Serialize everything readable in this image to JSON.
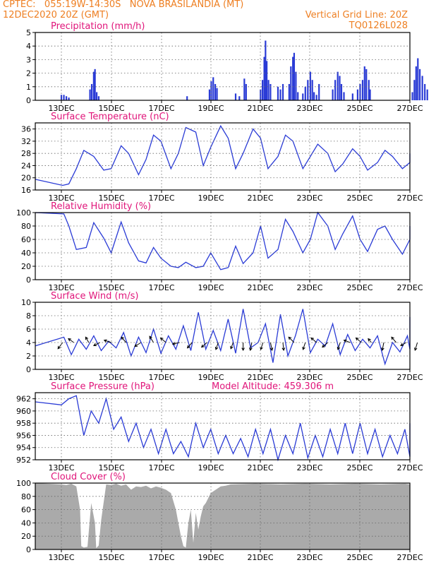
{
  "header": {
    "left_line1": "CPTEC:   055:19W-14:30S   NOVA BRASILANDIA (MT)",
    "left_line2": "12DEC2020 20Z (GMT)",
    "right_line1": "Vertical Grid Line: 20Z",
    "right_line2": "TQ0126L028",
    "color": "#ee7f22"
  },
  "colors": {
    "title": "#e0157a",
    "series": "#2a3bd6",
    "cloud": "#aaaaaa",
    "grid": "#666666"
  },
  "chart_data": [
    {
      "id": "precip",
      "type": "bar",
      "title": "Precipitation (mm/h)",
      "xticks": [
        "13DEC",
        "15DEC",
        "17DEC",
        "19DEC",
        "21DEC",
        "23DEC",
        "25DEC",
        "27DEC"
      ],
      "ylim": [
        0,
        5
      ],
      "yticks": [
        0,
        1,
        2,
        3,
        4,
        5
      ],
      "xlim_days": [
        0,
        15
      ],
      "bars": [
        [
          0.2,
          0.4
        ],
        [
          0.3,
          0.4
        ],
        [
          0.4,
          0.3
        ],
        [
          0.5,
          0.2
        ],
        [
          1.35,
          0.8
        ],
        [
          1.42,
          1.2
        ],
        [
          1.5,
          2.1
        ],
        [
          1.55,
          2.3
        ],
        [
          1.62,
          0.6
        ],
        [
          1.7,
          0.3
        ],
        [
          5.25,
          0.3
        ],
        [
          6.15,
          0.8
        ],
        [
          6.22,
          1.4
        ],
        [
          6.3,
          1.7
        ],
        [
          6.38,
          1.2
        ],
        [
          6.45,
          0.9
        ],
        [
          7.2,
          0.5
        ],
        [
          7.35,
          0.3
        ],
        [
          7.55,
          1.6
        ],
        [
          7.62,
          1.2
        ],
        [
          8.2,
          0.8
        ],
        [
          8.28,
          1.5
        ],
        [
          8.35,
          3.2
        ],
        [
          8.4,
          4.4
        ],
        [
          8.45,
          2.9
        ],
        [
          8.52,
          1.5
        ],
        [
          8.6,
          1.2
        ],
        [
          8.9,
          1.0
        ],
        [
          9.0,
          0.8
        ],
        [
          9.1,
          1.2
        ],
        [
          9.35,
          1.2
        ],
        [
          9.42,
          2.5
        ],
        [
          9.5,
          3.2
        ],
        [
          9.55,
          3.5
        ],
        [
          9.62,
          2.1
        ],
        [
          9.7,
          0.6
        ],
        [
          9.9,
          0.5
        ],
        [
          10.0,
          1.0
        ],
        [
          10.1,
          1.5
        ],
        [
          10.2,
          2.1
        ],
        [
          10.28,
          1.5
        ],
        [
          10.35,
          0.6
        ],
        [
          10.45,
          0.4
        ],
        [
          10.55,
          1.2
        ],
        [
          11.1,
          0.8
        ],
        [
          11.2,
          1.5
        ],
        [
          11.3,
          2.1
        ],
        [
          11.38,
          1.8
        ],
        [
          11.45,
          1.2
        ],
        [
          11.55,
          0.6
        ],
        [
          11.9,
          0.5
        ],
        [
          12.1,
          0.8
        ],
        [
          12.2,
          1.2
        ],
        [
          12.3,
          1.5
        ],
        [
          12.38,
          2.5
        ],
        [
          12.45,
          2.3
        ],
        [
          12.55,
          1.5
        ],
        [
          12.6,
          0.8
        ],
        [
          14.3,
          0.6
        ],
        [
          14.38,
          1.5
        ],
        [
          14.45,
          2.5
        ],
        [
          14.52,
          3.1
        ],
        [
          14.6,
          2.3
        ],
        [
          14.7,
          1.8
        ],
        [
          14.8,
          1.2
        ],
        [
          14.9,
          0.8
        ]
      ]
    },
    {
      "id": "temp",
      "type": "line",
      "title": "Surface Temperature (nC)",
      "xticks": [
        "13DEC",
        "15DEC",
        "17DEC",
        "19DEC",
        "21DEC",
        "23DEC",
        "25DEC",
        "27DEC"
      ],
      "ylim": [
        16,
        38
      ],
      "yticks": [
        16,
        20,
        24,
        28,
        32,
        36
      ],
      "x": [
        0,
        0.25,
        0.5,
        0.8,
        1.1,
        1.5,
        1.9,
        2.2,
        2.6,
        2.9,
        3.3,
        3.6,
        3.9,
        4.2,
        4.6,
        4.9,
        5.2,
        5.6,
        5.9,
        6.2,
        6.6,
        6.9,
        7.2,
        7.5,
        7.9,
        8.2,
        8.5,
        8.9,
        9.2,
        9.5,
        9.9,
        10.2,
        10.5,
        10.9,
        11.2,
        11.5,
        11.9,
        12.2,
        12.5,
        12.9,
        13.2,
        13.5,
        13.9,
        14.2,
        14.5,
        15
      ],
      "y": [
        19.5,
        17.5,
        18,
        23,
        29,
        27,
        22.5,
        23,
        30.5,
        28,
        21,
        26,
        34,
        32,
        23,
        28,
        36.5,
        35,
        24,
        30,
        37,
        33,
        23,
        28,
        36,
        33,
        23,
        27,
        34,
        32,
        23,
        27,
        31,
        28,
        22,
        24.5,
        29.5,
        27,
        22.5,
        25,
        29,
        27,
        23,
        25,
        28,
        27
      ]
    },
    {
      "id": "rh",
      "type": "line",
      "title": "Relative Humidity (%)",
      "xticks": [
        "13DEC",
        "15DEC",
        "17DEC",
        "19DEC",
        "21DEC",
        "23DEC",
        "25DEC",
        "27DEC"
      ],
      "ylim": [
        0,
        100
      ],
      "yticks": [
        0,
        20,
        40,
        60,
        80,
        100
      ],
      "x": [
        0,
        0.3,
        0.5,
        0.8,
        1.2,
        1.5,
        1.9,
        2.2,
        2.6,
        2.9,
        3.3,
        3.6,
        3.9,
        4.2,
        4.6,
        4.9,
        5.2,
        5.6,
        5.9,
        6.2,
        6.6,
        6.9,
        7.2,
        7.5,
        7.9,
        8.2,
        8.5,
        8.9,
        9.2,
        9.5,
        9.9,
        10.2,
        10.5,
        10.9,
        11.2,
        11.5,
        11.9,
        12.2,
        12.5,
        12.9,
        13.2,
        13.5,
        13.9,
        14.2,
        14.5,
        14.8,
        15
      ],
      "y": [
        100,
        98,
        80,
        45,
        48,
        85,
        62,
        40,
        86,
        55,
        28,
        25,
        48,
        32,
        20,
        18,
        26,
        18,
        20,
        40,
        15,
        18,
        50,
        24,
        40,
        80,
        32,
        45,
        90,
        72,
        40,
        60,
        100,
        80,
        45,
        68,
        95,
        60,
        42,
        75,
        80,
        60,
        38,
        60,
        70,
        80,
        75
      ]
    },
    {
      "id": "wind",
      "type": "line",
      "title": "Surface Wind (m/s)",
      "xticks": [
        "13DEC",
        "15DEC",
        "17DEC",
        "19DEC",
        "21DEC",
        "23DEC",
        "25DEC",
        "27DEC"
      ],
      "ylim": [
        0,
        10
      ],
      "yticks": [
        0,
        2,
        4,
        6,
        8,
        10
      ],
      "x": [
        0,
        0.3,
        0.6,
        0.9,
        1.2,
        1.5,
        1.8,
        2.1,
        2.4,
        2.7,
        3.0,
        3.3,
        3.6,
        3.9,
        4.2,
        4.5,
        4.8,
        5.1,
        5.4,
        5.7,
        6.0,
        6.3,
        6.6,
        6.9,
        7.2,
        7.5,
        7.8,
        8.1,
        8.4,
        8.7,
        9.0,
        9.3,
        9.6,
        9.9,
        10.2,
        10.5,
        10.8,
        11.1,
        11.4,
        11.7,
        12.0,
        12.3,
        12.6,
        12.9,
        13.2,
        13.5,
        13.8,
        14.1,
        14.4,
        14.7,
        15
      ],
      "y": [
        3.5,
        4.8,
        2.2,
        4.5,
        3.0,
        5.0,
        2.8,
        4.2,
        3.2,
        5.5,
        2.0,
        4.8,
        2.5,
        6.0,
        2.4,
        5.0,
        3.0,
        6.5,
        2.8,
        8.5,
        3.0,
        5.8,
        2.8,
        7.5,
        2.4,
        9.0,
        3.2,
        4.0,
        6.8,
        1.0,
        8.2,
        2.0,
        5.0,
        9.0,
        2.5,
        4.5,
        3.5,
        6.8,
        2.2,
        5.2,
        2.8,
        4.5,
        3.2,
        5.0,
        0.8,
        4.0,
        2.6,
        5.0,
        3.0,
        7.8,
        3.0
      ],
      "arrows": [
        [
          0.25,
          -0.6,
          -0.8
        ],
        [
          0.7,
          -0.7,
          0.5
        ],
        [
          1.3,
          -0.4,
          0.7
        ],
        [
          1.75,
          -0.8,
          -0.4
        ],
        [
          2.2,
          -0.9,
          0.3
        ],
        [
          2.8,
          -0.6,
          0.7
        ],
        [
          3.4,
          -0.8,
          -0.5
        ],
        [
          3.9,
          -0.5,
          0.8
        ],
        [
          4.4,
          -0.7,
          0.6
        ],
        [
          4.95,
          -0.9,
          -0.2
        ],
        [
          5.45,
          -0.6,
          -0.7
        ],
        [
          6.05,
          -0.7,
          -0.6
        ],
        [
          6.5,
          -0.3,
          -0.9
        ],
        [
          7.1,
          -0.3,
          -0.8
        ],
        [
          7.5,
          0.0,
          -1.0
        ],
        [
          7.85,
          -0.2,
          -1.0
        ],
        [
          8.3,
          -0.3,
          -0.9
        ],
        [
          8.6,
          0.2,
          -1.0
        ],
        [
          9.1,
          0.1,
          -1.0
        ],
        [
          9.55,
          -0.7,
          0.7
        ],
        [
          10.0,
          -0.3,
          -0.9
        ],
        [
          10.45,
          -0.7,
          0.6
        ],
        [
          10.9,
          -0.7,
          -0.6
        ],
        [
          11.4,
          -0.3,
          -0.9
        ],
        [
          11.8,
          -0.8,
          0.3
        ],
        [
          12.25,
          -0.7,
          0.6
        ],
        [
          12.65,
          -0.4,
          0.5
        ],
        [
          13.15,
          -0.2,
          -1.0
        ],
        [
          13.65,
          -0.6,
          0.7
        ],
        [
          14.05,
          -0.7,
          -0.4
        ],
        [
          14.5,
          -0.3,
          -1.0
        ]
      ]
    },
    {
      "id": "psfc",
      "type": "line",
      "title": "Surface Pressure (hPa)",
      "annotation": "Model Altitude: 459.306 m",
      "xticks": [
        "13DEC",
        "15DEC",
        "17DEC",
        "19DEC",
        "21DEC",
        "23DEC",
        "25DEC",
        "27DEC"
      ],
      "ylim": [
        952,
        963
      ],
      "yticks": [
        952,
        954,
        956,
        958,
        960,
        962
      ],
      "x": [
        0,
        0.2,
        0.5,
        0.8,
        1.1,
        1.4,
        1.7,
        2.0,
        2.3,
        2.6,
        2.9,
        3.2,
        3.5,
        3.8,
        4.1,
        4.4,
        4.7,
        5.0,
        5.3,
        5.6,
        5.9,
        6.2,
        6.5,
        6.8,
        7.1,
        7.4,
        7.7,
        8.0,
        8.3,
        8.6,
        8.9,
        9.2,
        9.5,
        9.8,
        10.1,
        10.4,
        10.7,
        11.0,
        11.3,
        11.6,
        11.9,
        12.2,
        12.5,
        12.8,
        13.1,
        13.4,
        13.7,
        14.0,
        14.3,
        14.6,
        15
      ],
      "y": [
        961.5,
        961,
        962,
        962.5,
        956,
        960,
        958,
        962,
        957,
        959,
        955,
        958,
        954,
        957,
        953,
        957,
        953,
        955,
        952.5,
        958,
        954,
        957,
        953,
        956,
        953,
        955.5,
        952.5,
        957,
        953,
        957,
        952,
        956,
        953,
        958,
        952.3,
        956,
        952.5,
        957,
        953,
        958,
        953,
        958,
        953,
        957,
        952.5,
        956,
        953,
        957,
        952.5,
        958,
        955
      ]
    },
    {
      "id": "cloud",
      "type": "area",
      "title": "Cloud Cover (%)",
      "xticks": [
        "13DEC",
        "15DEC",
        "17DEC",
        "19DEC",
        "21DEC",
        "23DEC",
        "25DEC",
        "27DEC"
      ],
      "ylim": [
        0,
        100
      ],
      "yticks": [
        0,
        20,
        40,
        60,
        80,
        100
      ],
      "x": [
        0,
        0.2,
        0.4,
        0.6,
        0.8,
        0.95,
        1.0,
        1.1,
        1.25,
        1.4,
        1.55,
        1.6,
        1.7,
        1.8,
        2.0,
        2.2,
        2.4,
        2.6,
        2.8,
        3.0,
        3.2,
        3.4,
        3.6,
        3.8,
        4.0,
        4.2,
        4.4,
        4.6,
        4.8,
        5.0,
        5.1,
        5.2,
        5.3,
        5.4,
        5.5,
        5.6,
        5.7,
        5.8,
        5.9,
        6.0,
        6.2,
        6.4,
        6.6,
        6.8,
        7.0,
        8.0,
        9.0,
        10.0,
        11.0,
        12.0,
        13.0,
        14.0,
        15.0
      ],
      "y": [
        100,
        98,
        97,
        99,
        95,
        60,
        5,
        3,
        4,
        70,
        40,
        2,
        6,
        45,
        98,
        97,
        99,
        96,
        98,
        90,
        95,
        94,
        96,
        92,
        95,
        93,
        90,
        85,
        60,
        20,
        5,
        3,
        40,
        60,
        10,
        55,
        30,
        50,
        65,
        70,
        85,
        90,
        95,
        96,
        98,
        99,
        98,
        99,
        98,
        99,
        98,
        99,
        98
      ]
    }
  ]
}
